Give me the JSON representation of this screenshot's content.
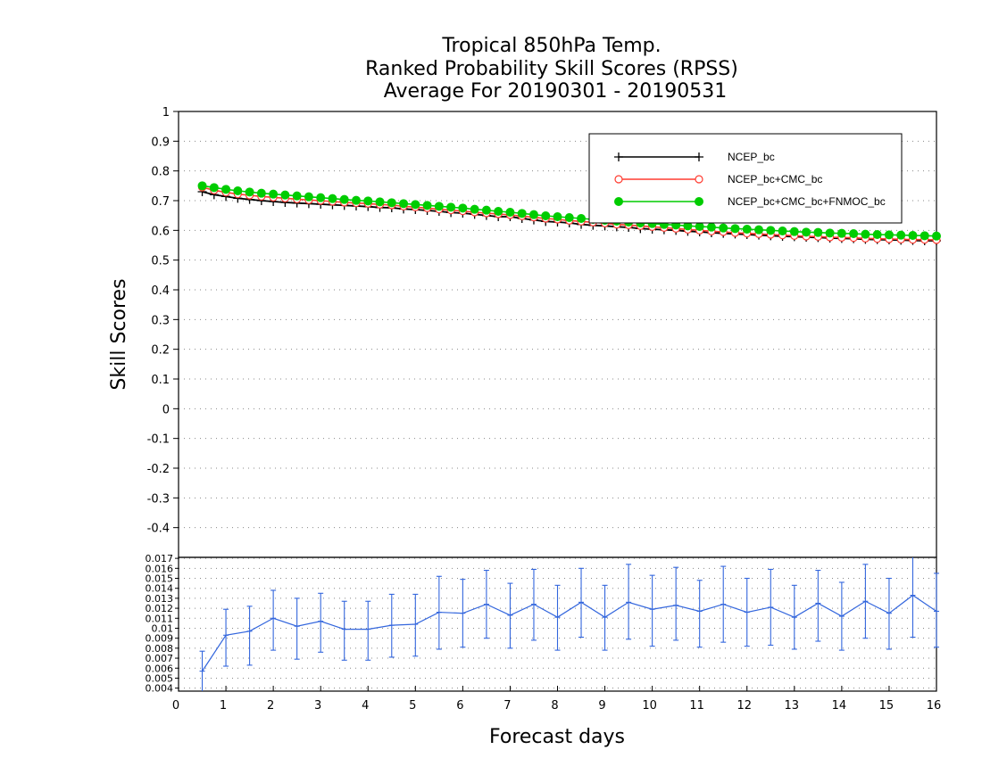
{
  "chart_data": [
    {
      "type": "line",
      "title_lines": [
        "Tropical 850hPa Temp.",
        "Ranked Probability Skill Scores (RPSS)",
        "Average For 20190301 - 20190531"
      ],
      "xlabel": "",
      "ylabel": "Skill Scores",
      "xlim": [
        0,
        16
      ],
      "ylim": [
        -0.5,
        1
      ],
      "yticks": [
        "-0.4",
        "-0.3",
        "-0.2",
        "-0.1",
        "0",
        "0.1",
        "0.2",
        "0.3",
        "0.4",
        "0.5",
        "0.6",
        "0.7",
        "0.8",
        "0.9",
        "1"
      ],
      "grid": true,
      "legend_position": "top-right",
      "x": [
        0.5,
        0.75,
        1,
        1.25,
        1.5,
        1.75,
        2,
        2.25,
        2.5,
        2.75,
        3,
        3.25,
        3.5,
        3.75,
        4,
        4.25,
        4.5,
        4.75,
        5,
        5.25,
        5.5,
        5.75,
        6,
        6.25,
        6.5,
        6.75,
        7,
        7.25,
        7.5,
        7.75,
        8,
        8.25,
        8.5,
        8.75,
        9,
        9.25,
        9.5,
        9.75,
        10,
        10.25,
        10.5,
        10.75,
        11,
        11.25,
        11.5,
        11.75,
        12,
        12.25,
        12.5,
        12.75,
        13,
        13.25,
        13.5,
        13.75,
        14,
        14.25,
        14.5,
        14.75,
        15,
        15.25,
        15.5,
        15.75,
        16
      ],
      "series": [
        {
          "name": "NCEP_bc",
          "color": "#000000",
          "marker": "plus",
          "values": [
            0.73,
            0.72,
            0.714,
            0.708,
            0.704,
            0.7,
            0.697,
            0.694,
            0.692,
            0.69,
            0.688,
            0.686,
            0.684,
            0.682,
            0.68,
            0.677,
            0.676,
            0.672,
            0.67,
            0.667,
            0.664,
            0.66,
            0.658,
            0.654,
            0.65,
            0.646,
            0.646,
            0.64,
            0.635,
            0.63,
            0.628,
            0.625,
            0.62,
            0.617,
            0.615,
            0.612,
            0.61,
            0.606,
            0.604,
            0.602,
            0.6,
            0.597,
            0.595,
            0.592,
            0.59,
            0.588,
            0.586,
            0.584,
            0.582,
            0.58,
            0.579,
            0.577,
            0.576,
            0.574,
            0.573,
            0.572,
            0.57,
            0.569,
            0.568,
            0.567,
            0.566,
            0.565,
            0.565
          ]
        },
        {
          "name": "NCEP_bc+CMC_bc",
          "color": "#ff3b30",
          "marker": "open-circle",
          "values": [
            0.745,
            0.735,
            0.728,
            0.722,
            0.718,
            0.714,
            0.711,
            0.708,
            0.705,
            0.702,
            0.7,
            0.697,
            0.694,
            0.692,
            0.69,
            0.687,
            0.685,
            0.681,
            0.678,
            0.675,
            0.671,
            0.668,
            0.665,
            0.661,
            0.658,
            0.655,
            0.652,
            0.648,
            0.644,
            0.64,
            0.637,
            0.633,
            0.63,
            0.627,
            0.624,
            0.62,
            0.618,
            0.615,
            0.612,
            0.609,
            0.606,
            0.603,
            0.6,
            0.597,
            0.595,
            0.592,
            0.59,
            0.588,
            0.586,
            0.584,
            0.582,
            0.58,
            0.579,
            0.577,
            0.576,
            0.575,
            0.573,
            0.572,
            0.571,
            0.57,
            0.569,
            0.569,
            0.568
          ]
        },
        {
          "name": "NCEP_bc+CMC_bc+FNMOC_bc",
          "color": "#00cc00",
          "marker": "filled-circle",
          "values": [
            0.75,
            0.744,
            0.738,
            0.733,
            0.729,
            0.725,
            0.722,
            0.719,
            0.716,
            0.713,
            0.71,
            0.707,
            0.704,
            0.701,
            0.699,
            0.696,
            0.693,
            0.69,
            0.687,
            0.684,
            0.681,
            0.678,
            0.675,
            0.671,
            0.668,
            0.664,
            0.661,
            0.657,
            0.653,
            0.649,
            0.646,
            0.643,
            0.64,
            0.637,
            0.634,
            0.631,
            0.628,
            0.625,
            0.623,
            0.62,
            0.618,
            0.615,
            0.613,
            0.611,
            0.608,
            0.606,
            0.604,
            0.602,
            0.6,
            0.598,
            0.596,
            0.594,
            0.593,
            0.591,
            0.59,
            0.589,
            0.587,
            0.586,
            0.585,
            0.584,
            0.583,
            0.582,
            0.581
          ]
        }
      ]
    },
    {
      "type": "line",
      "xlabel": "Forecast days",
      "xlim": [
        0,
        16
      ],
      "xticks": [
        "0",
        "1",
        "2",
        "3",
        "4",
        "5",
        "6",
        "7",
        "8",
        "9",
        "10",
        "11",
        "12",
        "13",
        "14",
        "15",
        "16"
      ],
      "ylim": [
        0.0037,
        0.0171
      ],
      "yticks": [
        "0.004",
        "0.005",
        "0.006",
        "0.007",
        "0.008",
        "0.009",
        "0.01",
        "0.011",
        "0.012",
        "0.013",
        "0.014",
        "0.015",
        "0.016",
        "0.017"
      ],
      "grid": true,
      "error_bars": true,
      "series": [
        {
          "color": "#3366dd",
          "x": [
            0.5,
            1,
            1.5,
            2,
            2.5,
            3,
            3.5,
            4,
            4.5,
            5,
            5.5,
            6,
            6.5,
            7,
            7.5,
            8,
            8.5,
            9,
            9.5,
            10,
            10.5,
            11,
            11.5,
            12,
            12.5,
            13,
            13.5,
            14,
            14.5,
            15,
            15.5,
            16
          ],
          "values": [
            0.0057,
            0.0093,
            0.0097,
            0.011,
            0.0102,
            0.0107,
            0.0099,
            0.0099,
            0.0103,
            0.0104,
            0.0116,
            0.0115,
            0.0124,
            0.0113,
            0.0124,
            0.0111,
            0.0126,
            0.0111,
            0.0126,
            0.0119,
            0.0123,
            0.0117,
            0.0124,
            0.0116,
            0.0121,
            0.0111,
            0.0125,
            0.0112,
            0.0127,
            0.0115,
            0.0133,
            0.0117
          ],
          "low": [
            0.0037,
            0.0062,
            0.0063,
            0.0078,
            0.0069,
            0.0076,
            0.0068,
            0.0068,
            0.0071,
            0.0072,
            0.0079,
            0.0081,
            0.009,
            0.008,
            0.0088,
            0.0078,
            0.0091,
            0.0078,
            0.0089,
            0.0082,
            0.0088,
            0.0081,
            0.0086,
            0.0082,
            0.0083,
            0.0079,
            0.0087,
            0.0078,
            0.009,
            0.0079,
            0.0091,
            0.0081
          ],
          "high": [
            0.0077,
            0.0119,
            0.0122,
            0.0138,
            0.013,
            0.0135,
            0.0127,
            0.0127,
            0.0134,
            0.0134,
            0.0152,
            0.0149,
            0.0158,
            0.0145,
            0.0159,
            0.0143,
            0.016,
            0.0143,
            0.0164,
            0.0153,
            0.0161,
            0.0148,
            0.0162,
            0.015,
            0.0159,
            0.0143,
            0.0158,
            0.0146,
            0.0164,
            0.015,
            0.0171,
            0.0155
          ]
        }
      ]
    }
  ]
}
